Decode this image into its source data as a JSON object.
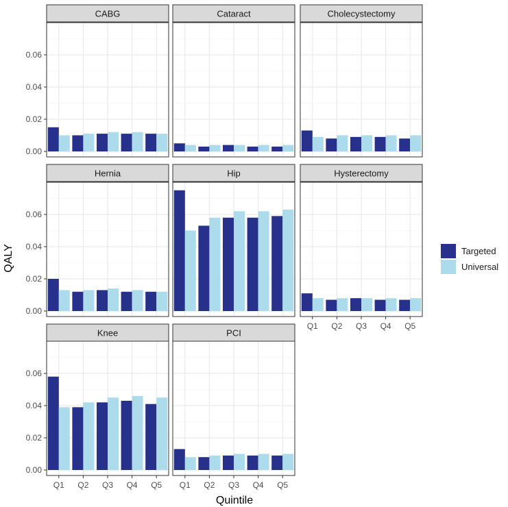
{
  "chart_data": {
    "type": "bar",
    "layout": "faceted grouped bar, 3 columns, shared y axis per row",
    "xlabel": "Quintile",
    "ylabel": "QALY",
    "ylim": [
      0,
      0.08
    ],
    "yticks": [
      0.0,
      0.02,
      0.04,
      0.06
    ],
    "ytick_labels": [
      "0.00",
      "0.02",
      "0.04",
      "0.06"
    ],
    "categories": [
      "Q1",
      "Q2",
      "Q3",
      "Q4",
      "Q5"
    ],
    "grid": true,
    "legend": {
      "placement": "right",
      "entries": [
        {
          "name": "Targeted",
          "color": "#27318c"
        },
        {
          "name": "Universal",
          "color": "#acdcec"
        }
      ]
    },
    "panels": [
      {
        "name": "CABG",
        "targeted": [
          0.015,
          0.01,
          0.011,
          0.011,
          0.011
        ],
        "universal": [
          0.01,
          0.011,
          0.012,
          0.012,
          0.011
        ]
      },
      {
        "name": "Cataract",
        "targeted": [
          0.005,
          0.003,
          0.004,
          0.003,
          0.003
        ],
        "universal": [
          0.004,
          0.004,
          0.004,
          0.004,
          0.004
        ]
      },
      {
        "name": "Cholecystectomy",
        "targeted": [
          0.013,
          0.008,
          0.009,
          0.009,
          0.008
        ],
        "universal": [
          0.009,
          0.01,
          0.01,
          0.01,
          0.01
        ]
      },
      {
        "name": "Hernia",
        "targeted": [
          0.02,
          0.012,
          0.013,
          0.012,
          0.012
        ],
        "universal": [
          0.013,
          0.013,
          0.014,
          0.013,
          0.012
        ]
      },
      {
        "name": "Hip",
        "targeted": [
          0.075,
          0.053,
          0.058,
          0.058,
          0.059
        ],
        "universal": [
          0.05,
          0.058,
          0.062,
          0.062,
          0.063
        ]
      },
      {
        "name": "Hysterectomy",
        "targeted": [
          0.011,
          0.007,
          0.008,
          0.007,
          0.007
        ],
        "universal": [
          0.008,
          0.008,
          0.008,
          0.008,
          0.008
        ]
      },
      {
        "name": "Knee",
        "targeted": [
          0.058,
          0.039,
          0.042,
          0.043,
          0.041
        ],
        "universal": [
          0.039,
          0.042,
          0.045,
          0.046,
          0.045
        ]
      },
      {
        "name": "PCI",
        "targeted": [
          0.013,
          0.008,
          0.009,
          0.009,
          0.009
        ],
        "universal": [
          0.008,
          0.009,
          0.01,
          0.01,
          0.01
        ]
      }
    ]
  }
}
